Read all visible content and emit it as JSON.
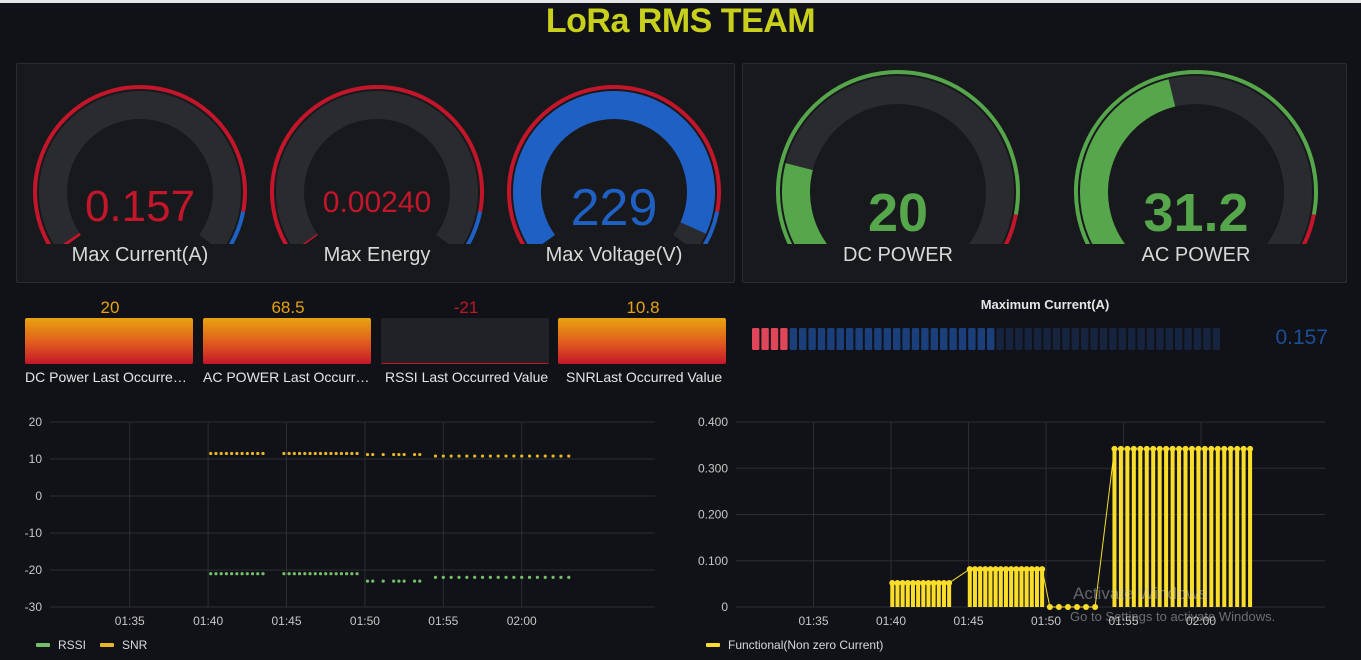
{
  "dashboard": {
    "title": "LoRa RMS TEAM"
  },
  "gauges": [
    {
      "label": "Max Current(A)",
      "value": "0.157",
      "num": 0.157,
      "min": 0,
      "max": 20,
      "value_color": "#c4162a",
      "fill_color": "#c4162a",
      "threshold_colors": [
        "#c4162a",
        "#1f60c4"
      ]
    },
    {
      "label": "Max Energy",
      "value": "0.00240",
      "num": 0.0024,
      "min": 0,
      "max": 1,
      "value_color": "#c4162a",
      "fill_color": "#c4162a",
      "threshold_colors": [
        "#c4162a",
        "#1f60c4"
      ]
    },
    {
      "label": "Max Voltage(V)",
      "value": "229",
      "num": 229,
      "min": 0,
      "max": 240,
      "value_color": "#1f60c4",
      "fill_color": "#1f60c4",
      "threshold_colors": [
        "#c4162a",
        "#1f60c4"
      ]
    }
  ],
  "power_gauges": [
    {
      "label": "DC POWER",
      "value": "20",
      "num": 20,
      "min": 0,
      "max": 100,
      "value_color": "#56a64b",
      "fill_color": "#56a64b",
      "threshold_colors": [
        "#56a64b",
        "#c4162a"
      ]
    },
    {
      "label": "AC POWER",
      "value": "31.2",
      "num": 31.2,
      "min": 0,
      "max": 70,
      "value_color": "#56a64b",
      "fill_color": "#56a64b",
      "threshold_colors": [
        "#56a64b",
        "#c4162a"
      ]
    }
  ],
  "stats": [
    {
      "label": "DC Power Last Occurred Value",
      "value": "20",
      "value_color": "#e8a210",
      "style": "gradient"
    },
    {
      "label": "AC POWER Last Occurred Value",
      "value": "68.5",
      "value_color": "#e8a210",
      "style": "gradient"
    },
    {
      "label": "RSSI Last Occurred Value",
      "value": "-21",
      "value_color": "#c4162a",
      "style": "dark"
    },
    {
      "label": "SNRLast Occurred Value",
      "value": "10.8",
      "value_color": "#e8a210",
      "style": "gradient"
    }
  ],
  "bar_gauge": {
    "title": "Maximum Current(A)",
    "value": "0.157",
    "fraction": 0.14,
    "lit_cells": 26,
    "total_cells": 50,
    "red_cells": 4,
    "colors": {
      "red": "#e0465a",
      "blue": "#1a3f7a",
      "dim": "#172440"
    }
  },
  "chart_rssi_snr": {
    "type": "scatter",
    "x_ticks": [
      "01:35",
      "01:40",
      "01:45",
      "01:50",
      "01:55",
      "02:00"
    ],
    "y_ticks": [
      "20",
      "10",
      "0",
      "-10",
      "-20",
      "-30"
    ],
    "ylim": [
      -30,
      20
    ],
    "series": [
      {
        "name": "RSSI",
        "color": "#73bf69",
        "points": [
          {
            "t": "01:40:10",
            "y": -21
          },
          {
            "t": "01:40:30",
            "y": -21
          },
          {
            "t": "01:40:50",
            "y": -21
          },
          {
            "t": "01:41:10",
            "y": -21
          },
          {
            "t": "01:41:30",
            "y": -21
          },
          {
            "t": "01:41:50",
            "y": -21
          },
          {
            "t": "01:42:10",
            "y": -21
          },
          {
            "t": "01:42:30",
            "y": -21
          },
          {
            "t": "01:42:50",
            "y": -21
          },
          {
            "t": "01:43:10",
            "y": -21
          },
          {
            "t": "01:43:30",
            "y": -21
          },
          {
            "t": "01:44:50",
            "y": -21
          },
          {
            "t": "01:45:10",
            "y": -21
          },
          {
            "t": "01:45:30",
            "y": -21
          },
          {
            "t": "01:45:50",
            "y": -21
          },
          {
            "t": "01:46:10",
            "y": -21
          },
          {
            "t": "01:46:30",
            "y": -21
          },
          {
            "t": "01:46:50",
            "y": -21
          },
          {
            "t": "01:47:10",
            "y": -21
          },
          {
            "t": "01:47:30",
            "y": -21
          },
          {
            "t": "01:47:50",
            "y": -21
          },
          {
            "t": "01:48:10",
            "y": -21
          },
          {
            "t": "01:48:30",
            "y": -21
          },
          {
            "t": "01:48:50",
            "y": -21
          },
          {
            "t": "01:49:10",
            "y": -21
          },
          {
            "t": "01:49:30",
            "y": -21
          },
          {
            "t": "01:50:10",
            "y": -23
          },
          {
            "t": "01:50:30",
            "y": -23
          },
          {
            "t": "01:51:10",
            "y": -23
          },
          {
            "t": "01:51:50",
            "y": -23
          },
          {
            "t": "01:52:10",
            "y": -23
          },
          {
            "t": "01:52:30",
            "y": -23
          },
          {
            "t": "01:53:10",
            "y": -23
          },
          {
            "t": "01:53:30",
            "y": -23
          },
          {
            "t": "01:54:30",
            "y": -22
          },
          {
            "t": "01:55:00",
            "y": -22
          },
          {
            "t": "01:55:30",
            "y": -22
          },
          {
            "t": "01:56:00",
            "y": -22
          },
          {
            "t": "01:56:30",
            "y": -22
          },
          {
            "t": "01:57:00",
            "y": -22
          },
          {
            "t": "01:57:30",
            "y": -22
          },
          {
            "t": "01:58:00",
            "y": -22
          },
          {
            "t": "01:58:30",
            "y": -22
          },
          {
            "t": "01:59:00",
            "y": -22
          },
          {
            "t": "01:59:30",
            "y": -22
          },
          {
            "t": "02:00:00",
            "y": -22
          },
          {
            "t": "02:00:30",
            "y": -22
          },
          {
            "t": "02:01:00",
            "y": -22
          },
          {
            "t": "02:01:30",
            "y": -22
          },
          {
            "t": "02:02:00",
            "y": -22
          },
          {
            "t": "02:02:30",
            "y": -22
          },
          {
            "t": "02:03:00",
            "y": -22
          }
        ]
      },
      {
        "name": "SNR",
        "color": "#e8b624",
        "points": [
          {
            "t": "01:40:10",
            "y": 11.5
          },
          {
            "t": "01:40:30",
            "y": 11.5
          },
          {
            "t": "01:40:50",
            "y": 11.5
          },
          {
            "t": "01:41:10",
            "y": 11.5
          },
          {
            "t": "01:41:30",
            "y": 11.5
          },
          {
            "t": "01:41:50",
            "y": 11.5
          },
          {
            "t": "01:42:10",
            "y": 11.5
          },
          {
            "t": "01:42:30",
            "y": 11.5
          },
          {
            "t": "01:42:50",
            "y": 11.5
          },
          {
            "t": "01:43:10",
            "y": 11.5
          },
          {
            "t": "01:43:30",
            "y": 11.5
          },
          {
            "t": "01:44:50",
            "y": 11.5
          },
          {
            "t": "01:45:10",
            "y": 11.5
          },
          {
            "t": "01:45:30",
            "y": 11.5
          },
          {
            "t": "01:45:50",
            "y": 11.5
          },
          {
            "t": "01:46:10",
            "y": 11.5
          },
          {
            "t": "01:46:30",
            "y": 11.5
          },
          {
            "t": "01:46:50",
            "y": 11.5
          },
          {
            "t": "01:47:10",
            "y": 11.5
          },
          {
            "t": "01:47:30",
            "y": 11.5
          },
          {
            "t": "01:47:50",
            "y": 11.5
          },
          {
            "t": "01:48:10",
            "y": 11.5
          },
          {
            "t": "01:48:30",
            "y": 11.5
          },
          {
            "t": "01:48:50",
            "y": 11.5
          },
          {
            "t": "01:49:10",
            "y": 11.5
          },
          {
            "t": "01:49:30",
            "y": 11.5
          },
          {
            "t": "01:50:10",
            "y": 11.2
          },
          {
            "t": "01:50:30",
            "y": 11.2
          },
          {
            "t": "01:51:10",
            "y": 11.2
          },
          {
            "t": "01:51:50",
            "y": 11.2
          },
          {
            "t": "01:52:10",
            "y": 11.2
          },
          {
            "t": "01:52:30",
            "y": 11.2
          },
          {
            "t": "01:53:10",
            "y": 11.2
          },
          {
            "t": "01:53:30",
            "y": 11.2
          },
          {
            "t": "01:54:30",
            "y": 10.8
          },
          {
            "t": "01:55:00",
            "y": 10.8
          },
          {
            "t": "01:55:30",
            "y": 10.8
          },
          {
            "t": "01:56:00",
            "y": 10.8
          },
          {
            "t": "01:56:30",
            "y": 10.8
          },
          {
            "t": "01:57:00",
            "y": 10.8
          },
          {
            "t": "01:57:30",
            "y": 10.8
          },
          {
            "t": "01:58:00",
            "y": 10.8
          },
          {
            "t": "01:58:30",
            "y": 10.8
          },
          {
            "t": "01:59:00",
            "y": 10.8
          },
          {
            "t": "01:59:30",
            "y": 10.8
          },
          {
            "t": "02:00:00",
            "y": 10.8
          },
          {
            "t": "02:00:30",
            "y": 10.8
          },
          {
            "t": "02:01:00",
            "y": 10.8
          },
          {
            "t": "02:01:30",
            "y": 10.8
          },
          {
            "t": "02:02:00",
            "y": 10.8
          },
          {
            "t": "02:02:30",
            "y": 10.8
          },
          {
            "t": "02:03:00",
            "y": 10.8
          }
        ]
      }
    ],
    "legend": [
      {
        "name": "RSSI",
        "color": "#73bf69"
      },
      {
        "name": "SNR",
        "color": "#e8b624"
      }
    ]
  },
  "chart_current": {
    "type": "bar",
    "x_ticks": [
      "01:35",
      "01:40",
      "01:45",
      "01:50",
      "01:55",
      "02:00"
    ],
    "y_ticks": [
      "0.400",
      "0.300",
      "0.200",
      "0.100",
      "0"
    ],
    "ylim": [
      0,
      0.4
    ],
    "series": [
      {
        "name": "Functional(Non zero Current)",
        "color": "#fade2a",
        "points": [
          {
            "t": "01:40:05",
            "y": 0.052
          },
          {
            "t": "01:40:25",
            "y": 0.052
          },
          {
            "t": "01:40:45",
            "y": 0.052
          },
          {
            "t": "01:41:05",
            "y": 0.052
          },
          {
            "t": "01:41:25",
            "y": 0.052
          },
          {
            "t": "01:41:45",
            "y": 0.052
          },
          {
            "t": "01:42:05",
            "y": 0.052
          },
          {
            "t": "01:42:25",
            "y": 0.052
          },
          {
            "t": "01:42:45",
            "y": 0.052
          },
          {
            "t": "01:43:05",
            "y": 0.052
          },
          {
            "t": "01:43:25",
            "y": 0.052
          },
          {
            "t": "01:43:45",
            "y": 0.052
          },
          {
            "t": "01:45:05",
            "y": 0.082
          },
          {
            "t": "01:45:25",
            "y": 0.082
          },
          {
            "t": "01:45:45",
            "y": 0.082
          },
          {
            "t": "01:46:05",
            "y": 0.082
          },
          {
            "t": "01:46:25",
            "y": 0.082
          },
          {
            "t": "01:46:45",
            "y": 0.082
          },
          {
            "t": "01:47:05",
            "y": 0.082
          },
          {
            "t": "01:47:25",
            "y": 0.082
          },
          {
            "t": "01:47:45",
            "y": 0.082
          },
          {
            "t": "01:48:05",
            "y": 0.082
          },
          {
            "t": "01:48:25",
            "y": 0.082
          },
          {
            "t": "01:48:45",
            "y": 0.082
          },
          {
            "t": "01:49:05",
            "y": 0.082
          },
          {
            "t": "01:49:25",
            "y": 0.082
          },
          {
            "t": "01:49:45",
            "y": 0.082
          },
          {
            "t": "01:50:15",
            "y": 0
          },
          {
            "t": "01:50:50",
            "y": 0
          },
          {
            "t": "01:51:25",
            "y": 0
          },
          {
            "t": "01:52:00",
            "y": 0
          },
          {
            "t": "01:52:35",
            "y": 0
          },
          {
            "t": "01:53:10",
            "y": 0
          },
          {
            "t": "01:54:25",
            "y": 0.342
          },
          {
            "t": "01:54:50",
            "y": 0.342
          },
          {
            "t": "01:55:15",
            "y": 0.342
          },
          {
            "t": "01:55:40",
            "y": 0.342
          },
          {
            "t": "01:56:05",
            "y": 0.342
          },
          {
            "t": "01:56:30",
            "y": 0.342
          },
          {
            "t": "01:56:55",
            "y": 0.342
          },
          {
            "t": "01:57:20",
            "y": 0.342
          },
          {
            "t": "01:57:45",
            "y": 0.342
          },
          {
            "t": "01:58:10",
            "y": 0.342
          },
          {
            "t": "01:58:35",
            "y": 0.342
          },
          {
            "t": "01:59:00",
            "y": 0.342
          },
          {
            "t": "01:59:25",
            "y": 0.342
          },
          {
            "t": "01:59:50",
            "y": 0.342
          },
          {
            "t": "02:00:15",
            "y": 0.342
          },
          {
            "t": "02:00:40",
            "y": 0.342
          },
          {
            "t": "02:01:05",
            "y": 0.342
          },
          {
            "t": "02:01:30",
            "y": 0.342
          },
          {
            "t": "02:01:55",
            "y": 0.342
          },
          {
            "t": "02:02:20",
            "y": 0.342
          },
          {
            "t": "02:02:45",
            "y": 0.342
          },
          {
            "t": "02:03:10",
            "y": 0.342
          }
        ]
      }
    ],
    "legend": [
      {
        "name": "Functional(Non zero Current)",
        "color": "#fade2a"
      }
    ]
  },
  "watermark": {
    "line1": "Activate Windows",
    "line2": "Go to Settings to activate Windows."
  }
}
